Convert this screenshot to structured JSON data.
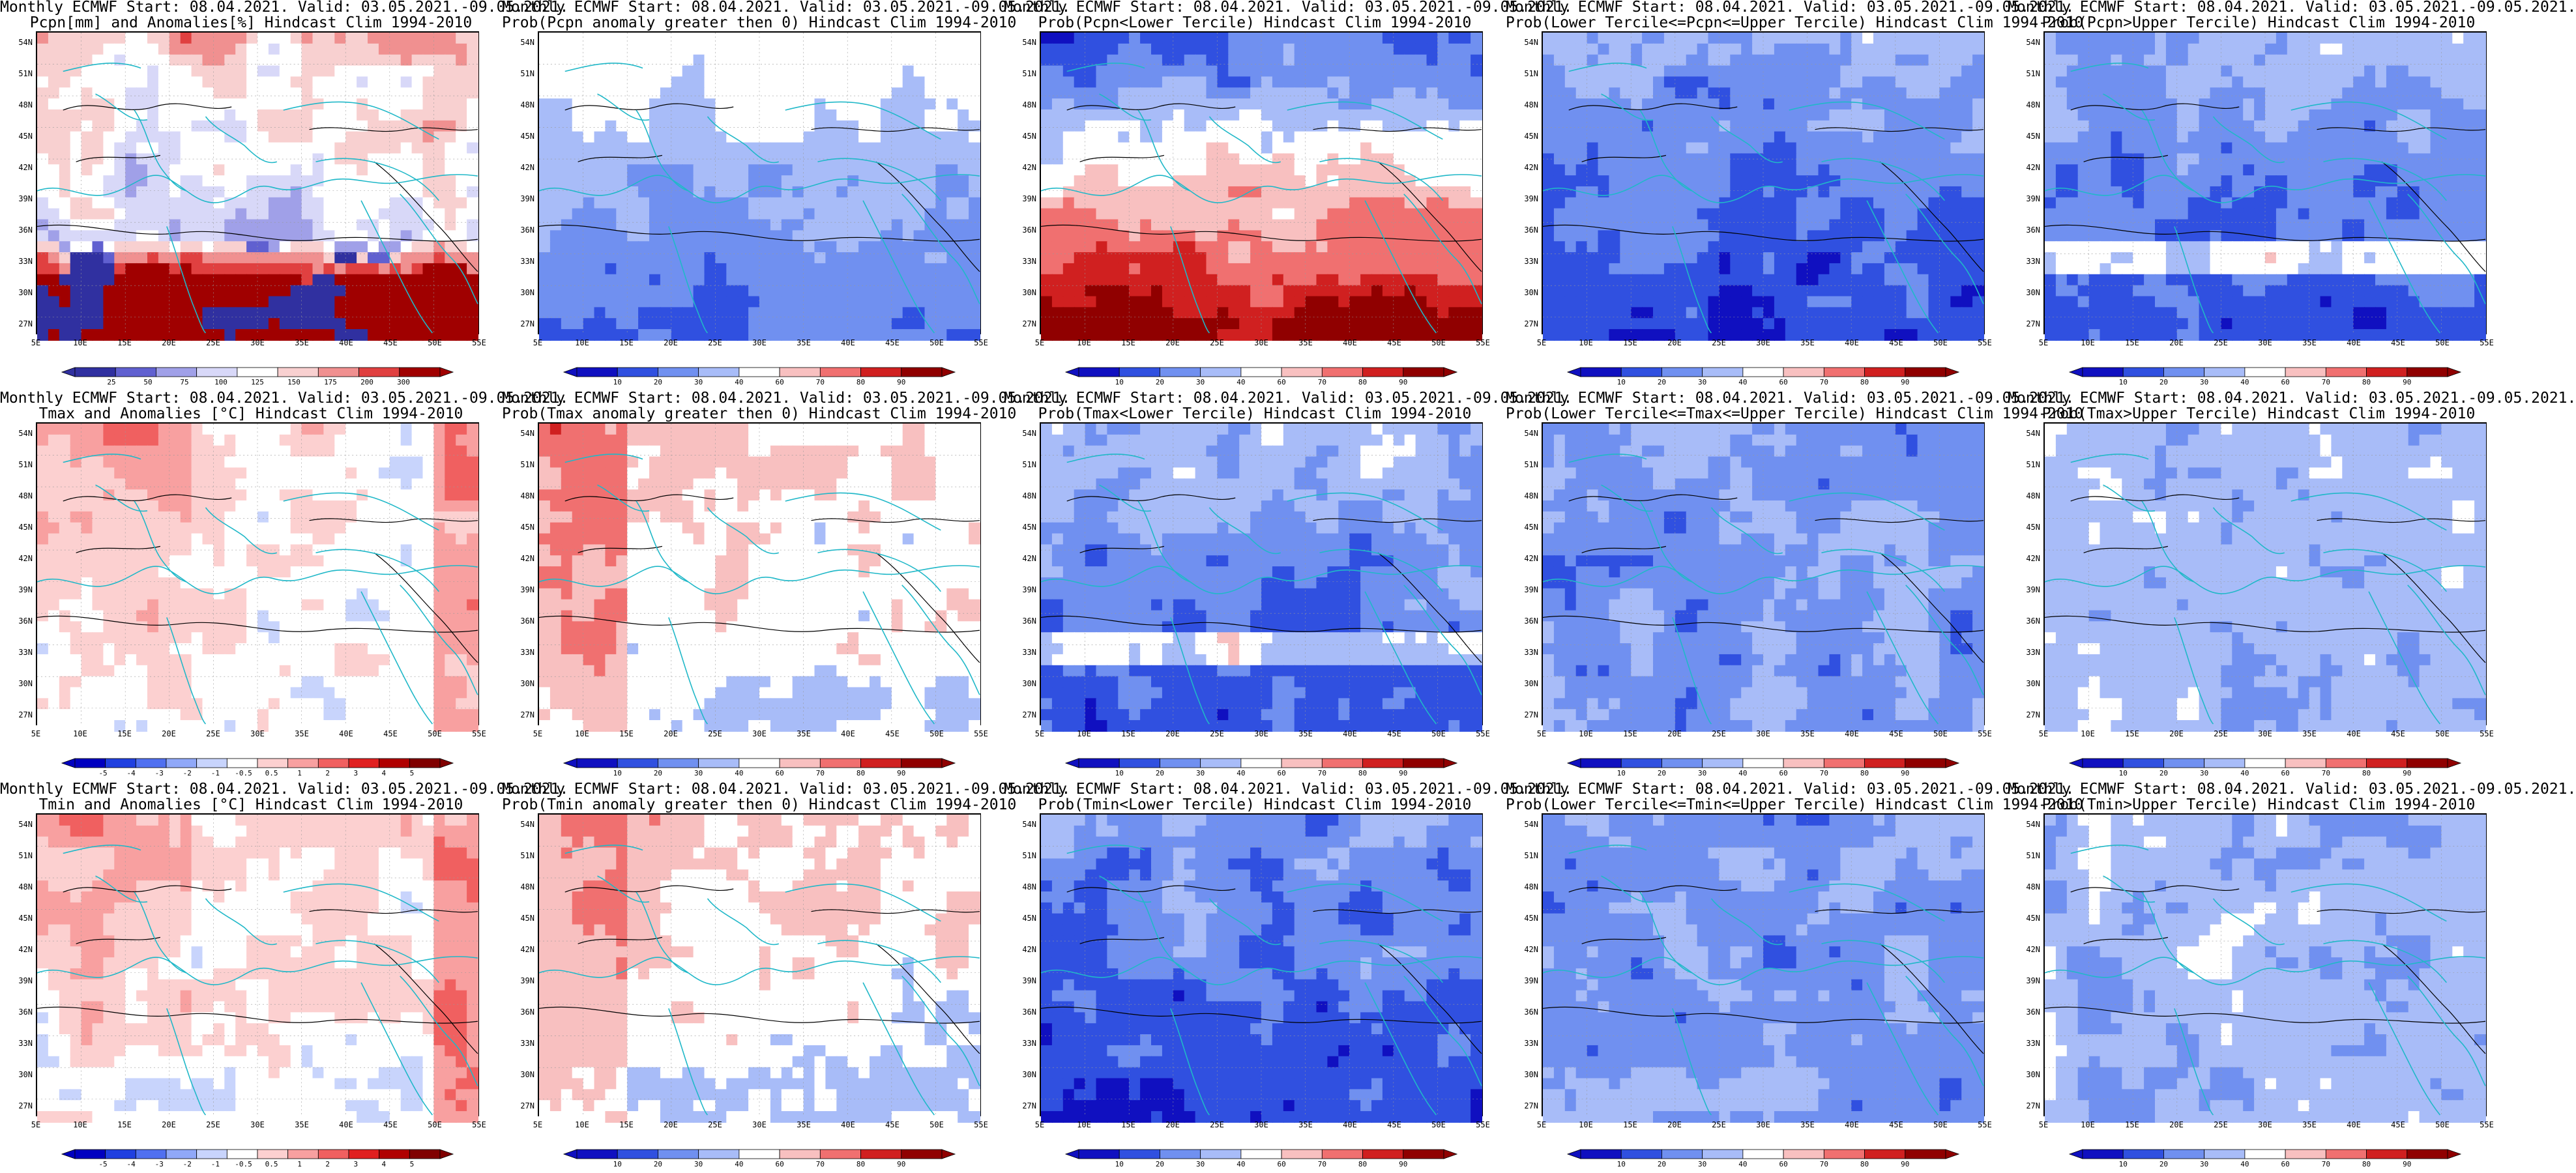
{
  "panels": [
    {
      "title1": "Monthly ECMWF Start: 08.04.2021. Valid: 03.05.2021.-09.05.2021.",
      "title2": "Pcpn[mm] and Anomalies[%] Hindcast Clim 1994-2010",
      "scheme": "pcpn",
      "cbar": [
        "25",
        "50",
        "75",
        "100",
        "125",
        "150",
        "175",
        "200",
        "300"
      ]
    },
    {
      "title1": "Monthly ECMWF Start: 08.04.2021. Valid: 03.05.2021.-09.05.2021.",
      "title2": "Prob(Pcpn anomaly greater then 0) Hindcast Clim 1994-2010",
      "scheme": "prob_low",
      "cbar": [
        "10",
        "20",
        "30",
        "40",
        "60",
        "70",
        "80",
        "90"
      ]
    },
    {
      "title1": "Monthly ECMWF Start: 08.04.2021. Valid: 03.05.2021.-09.05.2021.",
      "title2": "Prob(Pcpn<Lower Tercile) Hindcast Clim 1994-2010",
      "scheme": "prob_red",
      "cbar": [
        "10",
        "20",
        "30",
        "40",
        "60",
        "70",
        "80",
        "90"
      ]
    },
    {
      "title1": "Monthly ECMWF Start: 08.04.2021. Valid: 03.05.2021.-09.05.2021.",
      "title2": "Prob(Lower Tercile<=Pcpn<=Upper Tercile) Hindcast Clim 1994-2010",
      "scheme": "prob_blue_deep",
      "cbar": [
        "10",
        "20",
        "30",
        "40",
        "60",
        "70",
        "80",
        "90"
      ]
    },
    {
      "title1": "Monthly ECMWF Start: 08.04.2021. Valid: 03.05.2021.-09.05.2021.",
      "title2": "Prob(Pcpn>Upper Tercile) Hindcast Clim 1994-2010",
      "scheme": "prob_blue",
      "cbar": [
        "10",
        "20",
        "30",
        "40",
        "60",
        "70",
        "80",
        "90"
      ]
    },
    {
      "title1": "Monthly ECMWF Start: 08.04.2021. Valid: 03.05.2021.-09.05.2021.",
      "title2": "Tmax and Anomalies [°C] Hindcast Clim 1994-2010",
      "scheme": "anom",
      "cbar": [
        "-5",
        "-4",
        "-3",
        "-2",
        "-1",
        "-0.5",
        "0.5",
        "1",
        "2",
        "3",
        "4",
        "5"
      ]
    },
    {
      "title1": "Monthly ECMWF Start: 08.04.2021. Valid: 03.05.2021.-09.05.2021.",
      "title2": "Prob(Tmax anomaly greater then 0) Hindcast Clim 1994-2010",
      "scheme": "warm_light",
      "cbar": [
        "10",
        "20",
        "30",
        "40",
        "60",
        "70",
        "80",
        "90"
      ]
    },
    {
      "title1": "Monthly ECMWF Start: 08.04.2021. Valid: 03.05.2021.-09.05.2021.",
      "title2": "Prob(Tmax<Lower Tercile) Hindcast Clim 1994-2010",
      "scheme": "prob_blue",
      "cbar": [
        "10",
        "20",
        "30",
        "40",
        "60",
        "70",
        "80",
        "90"
      ]
    },
    {
      "title1": "Monthly ECMWF Start: 08.04.2021. Valid: 03.05.2021.-09.05.2021.",
      "title2": "Prob(Lower Tercile<=Tmax<=Upper Tercile) Hindcast Clim 1994-2010",
      "scheme": "prob_mid",
      "cbar": [
        "10",
        "20",
        "30",
        "40",
        "60",
        "70",
        "80",
        "90"
      ]
    },
    {
      "title1": "Monthly ECMWF Start: 08.04.2021. Valid: 03.05.2021.-09.05.2021.",
      "title2": "Prob(Tmax>Upper Tercile) Hindcast Clim 1994-2010",
      "scheme": "prob_light",
      "cbar": [
        "10",
        "20",
        "30",
        "40",
        "60",
        "70",
        "80",
        "90"
      ]
    },
    {
      "title1": "Monthly ECMWF Start: 08.04.2021. Valid: 03.05.2021.-09.05.2021.",
      "title2": "Tmin and Anomalies [°C] Hindcast Clim 1994-2010",
      "scheme": "anom",
      "cbar": [
        "-5",
        "-4",
        "-3",
        "-2",
        "-1",
        "-0.5",
        "0.5",
        "1",
        "2",
        "3",
        "4",
        "5"
      ]
    },
    {
      "title1": "Monthly ECMWF Start: 08.04.2021. Valid: 03.05.2021.-09.05.2021.",
      "title2": "Prob(Tmin anomaly greater then 0) Hindcast Clim 1994-2010",
      "scheme": "warm_light",
      "cbar": [
        "10",
        "20",
        "30",
        "40",
        "60",
        "70",
        "80",
        "90"
      ]
    },
    {
      "title1": "Monthly ECMWF Start: 08.04.2021. Valid: 03.05.2021.-09.05.2021.",
      "title2": "Prob(Tmin<Lower Tercile) Hindcast Clim 1994-2010",
      "scheme": "prob_blue_deep",
      "cbar": [
        "10",
        "20",
        "30",
        "40",
        "60",
        "70",
        "80",
        "90"
      ]
    },
    {
      "title1": "Monthly ECMWF Start: 08.04.2021. Valid: 03.05.2021.-09.05.2021.",
      "title2": "Prob(Lower Tercile<=Tmin<=Upper Tercile) Hindcast Clim 1994-2010",
      "scheme": "prob_mid",
      "cbar": [
        "10",
        "20",
        "30",
        "40",
        "60",
        "70",
        "80",
        "90"
      ]
    },
    {
      "title1": "Monthly ECMWF Start: 08.04.2021. Valid: 03.05.2021.-09.05.2021.",
      "title2": "Prob(Tmin>Upper Tercile) Hindcast Clim 1994-2010",
      "scheme": "prob_light",
      "cbar": [
        "10",
        "20",
        "30",
        "40",
        "60",
        "70",
        "80",
        "90"
      ]
    }
  ],
  "lat_labels": [
    "54N",
    "51N",
    "48N",
    "45N",
    "42N",
    "39N",
    "36N",
    "33N",
    "30N",
    "27N"
  ],
  "lon_labels": [
    "5E",
    "10E",
    "15E",
    "20E",
    "25E",
    "30E",
    "35E",
    "40E",
    "45E",
    "50E",
    "55E"
  ],
  "colors": {
    "coast": "#20b8c8",
    "contour": "#000000",
    "pcpn": [
      "#3030a0",
      "#6060d0",
      "#a0a0e8",
      "#d8d8f8",
      "#ffffff",
      "#f8d0d0",
      "#f09090",
      "#e04040",
      "#a00000"
    ],
    "anom": [
      "#0000c0",
      "#2040e0",
      "#5070f0",
      "#90a8f8",
      "#c8d4fc",
      "#ffffff",
      "#fcd0d0",
      "#f8a0a0",
      "#f06060",
      "#e02020",
      "#b00000",
      "#800000"
    ],
    "prob": [
      "#1010c0",
      "#3050e0",
      "#7090f0",
      "#a8bcf8",
      "#ffffff",
      "#f8c0c0",
      "#f07070",
      "#d02020",
      "#900000"
    ]
  }
}
